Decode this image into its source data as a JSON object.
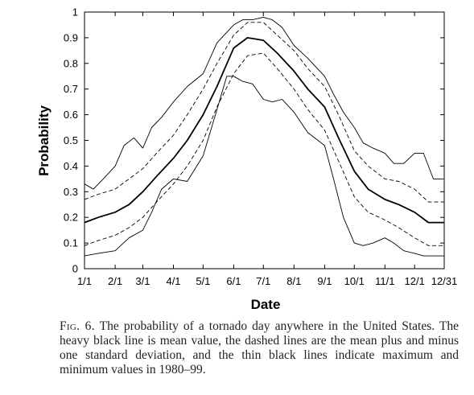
{
  "chart_data": {
    "type": "line",
    "xlabel": "Date",
    "ylabel": "Probability",
    "ylim": [
      0,
      1
    ],
    "yticks": [
      "0",
      "0.1",
      "0.2",
      "0.3",
      "0.4",
      "0.5",
      "0.6",
      "0.7",
      "0.8",
      "0.9",
      "1"
    ],
    "xticks": [
      "1/1",
      "2/1",
      "3/1",
      "4/1",
      "5/1",
      "6/1",
      "7/1",
      "8/1",
      "9/1",
      "10/1",
      "11/1",
      "12/1",
      "12/31"
    ],
    "grid": false,
    "legend": null,
    "series": [
      {
        "style": "min",
        "x": [
          "1/1",
          "1/15",
          "2/1",
          "2/15",
          "3/1",
          "3/10",
          "3/20",
          "4/1",
          "4/15",
          "5/1",
          "5/15",
          "5/25",
          "6/1",
          "6/10",
          "6/20",
          "7/1",
          "7/10",
          "7/20",
          "8/1",
          "8/15",
          "9/1",
          "9/10",
          "9/20",
          "10/1",
          "10/10",
          "10/20",
          "11/1",
          "11/10",
          "11/20",
          "12/1",
          "12/10",
          "12/20",
          "12/31"
        ],
        "y": [
          0.05,
          0.06,
          0.07,
          0.12,
          0.15,
          0.22,
          0.31,
          0.35,
          0.34,
          0.44,
          0.62,
          0.75,
          0.75,
          0.73,
          0.72,
          0.66,
          0.65,
          0.66,
          0.61,
          0.53,
          0.48,
          0.35,
          0.2,
          0.1,
          0.09,
          0.1,
          0.12,
          0.1,
          0.07,
          0.06,
          0.05,
          0.05,
          0.05
        ]
      },
      {
        "style": "mean_minus_sd",
        "x": [
          "1/1",
          "1/15",
          "2/1",
          "2/15",
          "3/1",
          "3/15",
          "4/1",
          "4/15",
          "5/1",
          "5/15",
          "6/1",
          "6/15",
          "7/1",
          "7/15",
          "8/1",
          "8/15",
          "9/1",
          "9/15",
          "10/1",
          "10/15",
          "11/1",
          "11/15",
          "12/1",
          "12/15",
          "12/31"
        ],
        "y": [
          0.09,
          0.11,
          0.13,
          0.16,
          0.2,
          0.26,
          0.33,
          0.4,
          0.5,
          0.63,
          0.76,
          0.83,
          0.84,
          0.78,
          0.7,
          0.62,
          0.54,
          0.42,
          0.28,
          0.22,
          0.19,
          0.16,
          0.12,
          0.09,
          0.09
        ]
      },
      {
        "style": "mean",
        "x": [
          "1/1",
          "1/15",
          "2/1",
          "2/15",
          "3/1",
          "3/15",
          "4/1",
          "4/15",
          "5/1",
          "5/15",
          "6/1",
          "6/15",
          "7/1",
          "7/15",
          "8/1",
          "8/15",
          "9/1",
          "9/15",
          "10/1",
          "10/15",
          "11/1",
          "11/15",
          "12/1",
          "12/15",
          "12/31"
        ],
        "y": [
          0.18,
          0.2,
          0.22,
          0.25,
          0.3,
          0.36,
          0.43,
          0.5,
          0.6,
          0.71,
          0.86,
          0.9,
          0.89,
          0.84,
          0.77,
          0.7,
          0.63,
          0.51,
          0.38,
          0.31,
          0.27,
          0.25,
          0.22,
          0.18,
          0.18
        ]
      },
      {
        "style": "mean_plus_sd",
        "x": [
          "1/1",
          "1/15",
          "2/1",
          "2/15",
          "3/1",
          "3/15",
          "4/1",
          "4/15",
          "5/1",
          "5/15",
          "6/1",
          "6/15",
          "7/1",
          "7/15",
          "8/1",
          "8/15",
          "9/1",
          "9/15",
          "10/1",
          "10/15",
          "11/1",
          "11/15",
          "12/1",
          "12/15",
          "12/31"
        ],
        "y": [
          0.27,
          0.29,
          0.31,
          0.35,
          0.39,
          0.45,
          0.52,
          0.6,
          0.7,
          0.8,
          0.91,
          0.96,
          0.96,
          0.91,
          0.85,
          0.78,
          0.71,
          0.6,
          0.46,
          0.4,
          0.35,
          0.34,
          0.31,
          0.26,
          0.26
        ]
      },
      {
        "style": "max",
        "x": [
          "1/1",
          "1/10",
          "1/20",
          "2/1",
          "2/10",
          "2/20",
          "3/1",
          "3/10",
          "3/20",
          "4/1",
          "4/15",
          "5/1",
          "5/15",
          "6/1",
          "6/10",
          "6/20",
          "7/1",
          "7/10",
          "7/20",
          "8/1",
          "8/15",
          "9/1",
          "9/10",
          "9/20",
          "10/1",
          "10/10",
          "10/20",
          "11/1",
          "11/10",
          "11/20",
          "12/1",
          "12/10",
          "12/20",
          "12/31"
        ],
        "y": [
          0.33,
          0.31,
          0.35,
          0.4,
          0.48,
          0.51,
          0.47,
          0.55,
          0.59,
          0.65,
          0.71,
          0.76,
          0.88,
          0.95,
          0.97,
          0.97,
          0.98,
          0.97,
          0.94,
          0.87,
          0.82,
          0.75,
          0.68,
          0.61,
          0.55,
          0.49,
          0.47,
          0.45,
          0.41,
          0.41,
          0.45,
          0.45,
          0.35,
          0.35
        ]
      }
    ]
  },
  "caption": {
    "label": "Fig. 6.",
    "text": "The probability of a tornado day anywhere in the United States. The heavy black line is mean value, the dashed lines are the mean plus and minus one standard deviation, and the thin black lines indicate maximum and minimum values in 1980–99."
  }
}
